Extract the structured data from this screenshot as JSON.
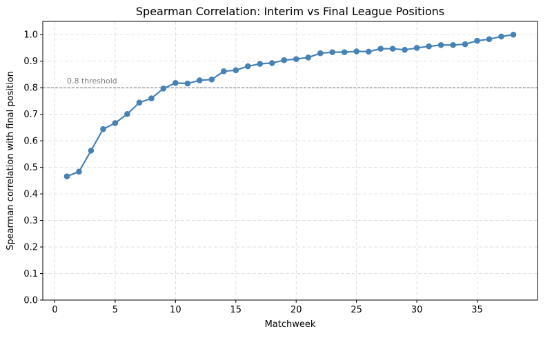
{
  "chart_data": {
    "type": "line",
    "title": "Spearman Correlation: Interim vs Final League Positions",
    "xlabel": "Matchweek",
    "ylabel": "Spearman correlation with final position",
    "xlim": [
      -1,
      40
    ],
    "ylim": [
      0,
      1.05
    ],
    "xticks": [
      0,
      5,
      10,
      15,
      20,
      25,
      30,
      35
    ],
    "yticks": [
      0.0,
      0.1,
      0.2,
      0.3,
      0.4,
      0.5,
      0.6,
      0.7,
      0.8,
      0.9,
      1.0
    ],
    "grid": true,
    "series": [
      {
        "name": "Spearman correlation",
        "color": "#4682b4",
        "x": [
          1,
          2,
          3,
          4,
          5,
          6,
          7,
          8,
          9,
          10,
          11,
          12,
          13,
          14,
          15,
          16,
          17,
          18,
          19,
          20,
          21,
          22,
          23,
          24,
          25,
          26,
          27,
          28,
          29,
          30,
          31,
          32,
          33,
          34,
          35,
          36,
          37,
          38
        ],
        "values": [
          0.466,
          0.484,
          0.563,
          0.644,
          0.667,
          0.701,
          0.744,
          0.76,
          0.797,
          0.818,
          0.816,
          0.828,
          0.831,
          0.862,
          0.866,
          0.881,
          0.89,
          0.893,
          0.904,
          0.908,
          0.914,
          0.93,
          0.934,
          0.934,
          0.937,
          0.936,
          0.947,
          0.947,
          0.943,
          0.95,
          0.956,
          0.961,
          0.961,
          0.964,
          0.977,
          0.983,
          0.993,
          1.0
        ]
      }
    ],
    "reference_line": {
      "y": 0.8,
      "label": "0.8 threshold",
      "color": "#808080"
    }
  }
}
